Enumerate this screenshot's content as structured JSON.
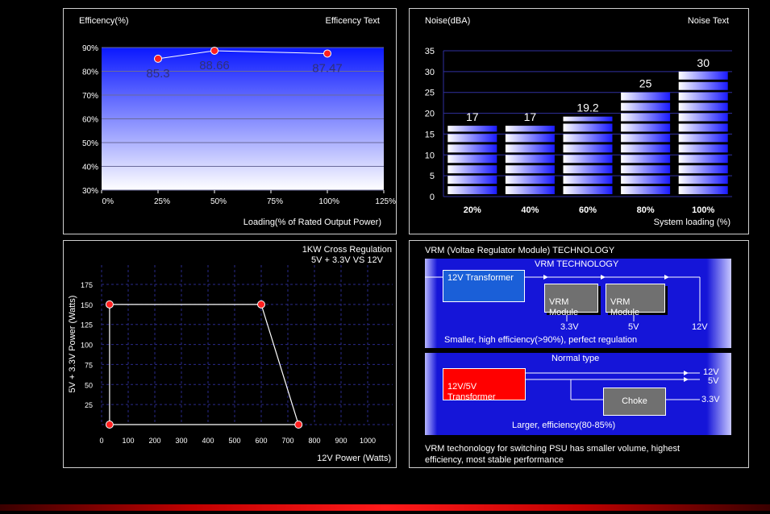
{
  "efficiency": {
    "title": "Efficency(%)",
    "side_label": "Efficency Text",
    "xlabel": "Loading(% of Rated Output Power)",
    "x_ticks": [
      "0%",
      "25%",
      "50%",
      "75%",
      "100%",
      "125%"
    ],
    "y_ticks": [
      "30%",
      "40%",
      "50%",
      "60%",
      "70%",
      "80%",
      "90%"
    ],
    "colors": {
      "top": "#0a18ff",
      "bottom": "#ffffff",
      "point": "#ff2020"
    }
  },
  "noise": {
    "title": "Noise(dBA)",
    "side_label": "Noise Text",
    "xlabel": "System loading (%)",
    "y_ticks": [
      "0",
      "5",
      "10",
      "15",
      "20",
      "25",
      "30",
      "35"
    ],
    "colors": {
      "bar": "#1a1aff"
    }
  },
  "cross": {
    "title_line1": "1KW Cross Regulation",
    "title_line2": "5V + 3.3V VS 12V",
    "xlabel": "12V Power (Watts)",
    "ylabel": "5V + 3.3V Power (Watts)",
    "x_ticks": [
      "0",
      "100",
      "200",
      "300",
      "400",
      "500",
      "600",
      "700",
      "800",
      "900",
      "1000"
    ],
    "y_ticks": [
      "25",
      "50",
      "75",
      "100",
      "125",
      "150",
      "175"
    ]
  },
  "vrm": {
    "title": "VRM (Voltae Regulator Module) TECHNOLOGY",
    "top_heading": "VRM TECHNOLOGY",
    "transformer_12v": "12V Transformer",
    "module_1": "VRM\nModule",
    "module_2": "VRM\nModule",
    "out_33v": "3.3V",
    "out_5v": "5V",
    "out_12v": "12V",
    "top_caption": "Smaller, high efficiency(>90%), perfect regulation",
    "bottom_heading": "Normal type",
    "transformer_mixed": "12V/5V\nTransformer",
    "choke": "Choke",
    "normal_12v": "12V",
    "normal_5v": "5V",
    "normal_33v": "3.3V",
    "bottom_caption": "Larger, efficiency(80-85%)",
    "description_line1": "VRM techonology for switching PSU has smaller volume, highest",
    "description_line2": "efficiency, most stable performance",
    "colors": {
      "panel": "#1010d0",
      "transformer": "#1a5fd8",
      "mixed": "#ff0000",
      "module": "#707070"
    }
  },
  "chart_data": [
    {
      "type": "line",
      "x": [
        25,
        50,
        100
      ],
      "values": [
        85.3,
        88.66,
        87.47
      ],
      "data_labels": [
        "85.3",
        "88.66",
        "87.47"
      ],
      "xlim": [
        0,
        125
      ],
      "ylim": [
        30,
        90
      ],
      "grid": true
    },
    {
      "type": "bar",
      "categories": [
        "20%",
        "40%",
        "60%",
        "80%",
        "100%"
      ],
      "values": [
        17,
        17,
        19.2,
        25,
        30
      ],
      "data_labels": [
        "17",
        "17",
        "19.2",
        "25",
        "30"
      ],
      "ylim": [
        0,
        35
      ],
      "grid": true
    },
    {
      "type": "line",
      "x": [
        30,
        30,
        600,
        740,
        30
      ],
      "values": [
        0,
        150,
        150,
        0,
        0
      ],
      "xlim": [
        0,
        1000
      ],
      "ylim": [
        0,
        175
      ],
      "grid": true
    }
  ]
}
